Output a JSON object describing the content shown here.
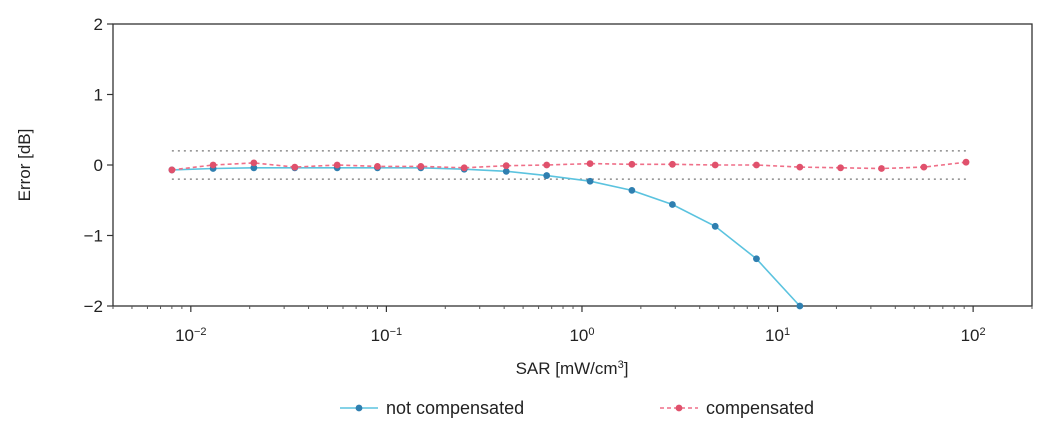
{
  "chart_data": {
    "type": "line",
    "xscale": "log",
    "xlim": [
      0.004,
      200
    ],
    "ylim": [
      -2,
      2
    ],
    "xlabel_prefix": "SAR [mW/cm",
    "xlabel_sup": "3",
    "xlabel_suffix": "]",
    "ylabel": "Error [dB]",
    "xticks": [
      {
        "value": 0.01,
        "base": "10",
        "exp": "−2"
      },
      {
        "value": 0.1,
        "base": "10",
        "exp": "−1"
      },
      {
        "value": 1,
        "base": "10",
        "exp": "0"
      },
      {
        "value": 10,
        "base": "10",
        "exp": "1"
      },
      {
        "value": 100,
        "base": "10",
        "exp": "2"
      }
    ],
    "yticks": [
      {
        "value": 2,
        "label": "2"
      },
      {
        "value": 1,
        "label": "1"
      },
      {
        "value": 0,
        "label": "0"
      },
      {
        "value": -1,
        "label": "−1"
      },
      {
        "value": -2,
        "label": "−2"
      }
    ],
    "reference_lines": [
      0.2,
      -0.2
    ],
    "legend_position": "bottom",
    "series": [
      {
        "name": "not compensated",
        "color": "#5bc3df",
        "marker_color": "#2f7fb0",
        "x": [
          0.008,
          0.013,
          0.021,
          0.034,
          0.056,
          0.09,
          0.15,
          0.25,
          0.41,
          0.66,
          1.1,
          1.8,
          2.9,
          4.8,
          7.8,
          13
        ],
        "y": [
          -0.07,
          -0.05,
          -0.04,
          -0.04,
          -0.04,
          -0.04,
          -0.04,
          -0.06,
          -0.09,
          -0.15,
          -0.23,
          -0.36,
          -0.56,
          -0.87,
          -1.33,
          -2.0
        ]
      },
      {
        "name": "compensated",
        "color": "#ef6f88",
        "marker_color": "#e0516c",
        "x": [
          0.008,
          0.013,
          0.021,
          0.034,
          0.056,
          0.09,
          0.15,
          0.25,
          0.41,
          0.66,
          1.1,
          1.8,
          2.9,
          4.8,
          7.8,
          13,
          21,
          34,
          56,
          92
        ],
        "y": [
          -0.07,
          0.0,
          0.03,
          -0.03,
          0.0,
          -0.02,
          -0.02,
          -0.04,
          -0.01,
          0.0,
          0.02,
          0.01,
          0.01,
          0.0,
          0.0,
          -0.03,
          -0.04,
          -0.05,
          -0.03,
          0.04
        ]
      }
    ]
  }
}
